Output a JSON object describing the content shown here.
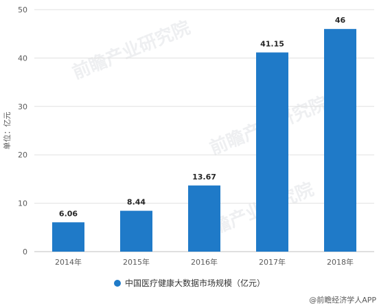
{
  "chart_data": {
    "type": "bar",
    "categories": [
      "2014年",
      "2015年",
      "2016年",
      "2017年",
      "2018年"
    ],
    "values": [
      6.06,
      8.44,
      13.67,
      41.15,
      46
    ],
    "value_labels": [
      "6.06",
      "8.44",
      "13.67",
      "41.15",
      "46"
    ],
    "ylabel": "单位：亿元",
    "ylim": [
      0,
      50
    ],
    "yticks": [
      0,
      10,
      20,
      30,
      40,
      50
    ],
    "ytick_labels": [
      "0",
      "10",
      "20",
      "30",
      "40",
      "50"
    ],
    "grid": true,
    "series": [
      {
        "name": "中国医疗健康大数据市场规模（亿元）",
        "color": "#1f7ac8"
      }
    ],
    "legend_position": "bottom"
  },
  "watermark": "前瞻产业研究院",
  "credit": "@前瞻经济学人APP",
  "colors": {
    "bar": "#1f7ac8",
    "grid": "#e0e0e0"
  }
}
